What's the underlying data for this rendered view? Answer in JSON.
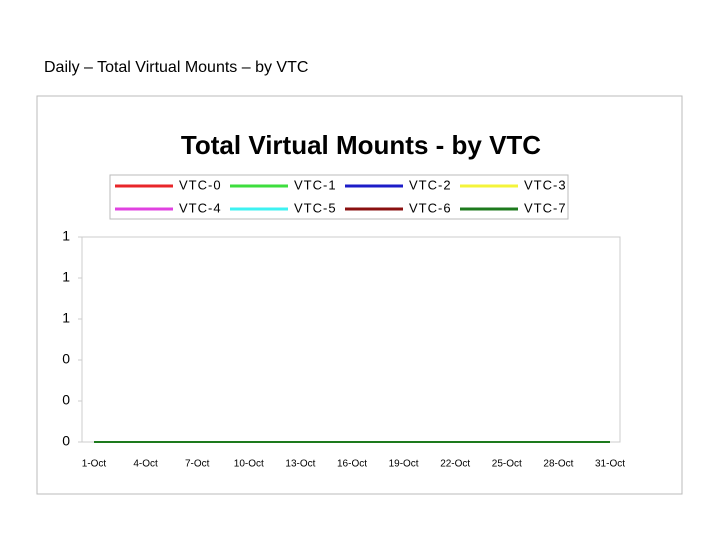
{
  "slide_title": "Daily – Total Virtual Mounts – by VTC",
  "chart_data": {
    "type": "line",
    "title": "Total Virtual Mounts - by VTC",
    "categories": [
      "1-Oct",
      null,
      null,
      "4-Oct",
      null,
      null,
      "7-Oct",
      null,
      null,
      "10-Oct",
      null,
      null,
      "13-Oct",
      null,
      null,
      "16-Oct",
      null,
      null,
      "19-Oct",
      null,
      null,
      "22-Oct",
      null,
      null,
      "25-Oct",
      null,
      null,
      "28-Oct",
      null,
      null,
      "31-Oct"
    ],
    "series": [
      {
        "name": "VTC-0",
        "color": "#e8262a",
        "values": [
          0,
          0,
          0,
          0,
          0,
          0,
          0,
          0,
          0,
          0,
          0,
          0,
          0,
          0,
          0,
          0,
          0,
          0,
          0,
          0,
          0,
          0,
          0,
          0,
          0,
          0,
          0,
          0,
          0,
          0,
          0
        ]
      },
      {
        "name": "VTC-1",
        "color": "#3ede3e",
        "values": [
          0,
          0,
          0,
          0,
          0,
          0,
          0,
          0,
          0,
          0,
          0,
          0,
          0,
          0,
          0,
          0,
          0,
          0,
          0,
          0,
          0,
          0,
          0,
          0,
          0,
          0,
          0,
          0,
          0,
          0,
          0
        ]
      },
      {
        "name": "VTC-2",
        "color": "#1c1cc8",
        "values": [
          0,
          0,
          0,
          0,
          0,
          0,
          0,
          0,
          0,
          0,
          0,
          0,
          0,
          0,
          0,
          0,
          0,
          0,
          0,
          0,
          0,
          0,
          0,
          0,
          0,
          0,
          0,
          0,
          0,
          0,
          0
        ]
      },
      {
        "name": "VTC-3",
        "color": "#f4f43a",
        "values": [
          0,
          0,
          0,
          0,
          0,
          0,
          0,
          0,
          0,
          0,
          0,
          0,
          0,
          0,
          0,
          0,
          0,
          0,
          0,
          0,
          0,
          0,
          0,
          0,
          0,
          0,
          0,
          0,
          0,
          0,
          0
        ]
      },
      {
        "name": "VTC-4",
        "color": "#e042e0",
        "values": [
          0,
          0,
          0,
          0,
          0,
          0,
          0,
          0,
          0,
          0,
          0,
          0,
          0,
          0,
          0,
          0,
          0,
          0,
          0,
          0,
          0,
          0,
          0,
          0,
          0,
          0,
          0,
          0,
          0,
          0,
          0
        ]
      },
      {
        "name": "VTC-5",
        "color": "#3ef2f2",
        "values": [
          0,
          0,
          0,
          0,
          0,
          0,
          0,
          0,
          0,
          0,
          0,
          0,
          0,
          0,
          0,
          0,
          0,
          0,
          0,
          0,
          0,
          0,
          0,
          0,
          0,
          0,
          0,
          0,
          0,
          0,
          0
        ]
      },
      {
        "name": "VTC-6",
        "color": "#8a1010",
        "values": [
          0,
          0,
          0,
          0,
          0,
          0,
          0,
          0,
          0,
          0,
          0,
          0,
          0,
          0,
          0,
          0,
          0,
          0,
          0,
          0,
          0,
          0,
          0,
          0,
          0,
          0,
          0,
          0,
          0,
          0,
          0
        ]
      },
      {
        "name": "VTC-7",
        "color": "#1d7a1d",
        "values": [
          0,
          0,
          0,
          0,
          0,
          0,
          0,
          0,
          0,
          0,
          0,
          0,
          0,
          0,
          0,
          0,
          0,
          0,
          0,
          0,
          0,
          0,
          0,
          0,
          0,
          0,
          0,
          0,
          0,
          0,
          0
        ]
      }
    ],
    "ylim": [
      0,
      1
    ],
    "yticks": [
      0,
      {
        "value": 0.2,
        "label": "0"
      },
      {
        "value": 0.4,
        "label": "0"
      },
      {
        "value": 0.6,
        "label": "1"
      },
      {
        "value": 0.8,
        "label": "1"
      },
      1
    ],
    "grid": false,
    "legend": "top"
  }
}
